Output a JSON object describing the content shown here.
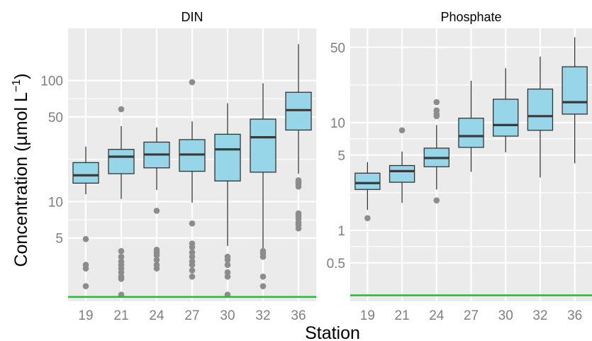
{
  "colors": {
    "panel_background": "#ebebeb",
    "grid": "#ffffff",
    "box_fill": "#97d6e8",
    "box_stroke": "#333333",
    "outlier": "#8c8c8c",
    "reference_line": "#22c42a",
    "tick_text": "#7f7f7f"
  },
  "labels": {
    "ylabel_main": "Concentration (",
    "ylabel_unit": "µmol L",
    "ylabel_exp": "−1",
    "ylabel_close": ")",
    "xlabel": "Station"
  },
  "chart_data": [
    {
      "type": "boxplot",
      "title": "DIN",
      "yscale": "log",
      "ylim": [
        1.5,
        270
      ],
      "yticks": [
        5,
        10,
        50,
        100
      ],
      "ytick_labels": [
        "5",
        "10",
        "50",
        "100"
      ],
      "reference_line": 1.63,
      "categories": [
        "19",
        "21",
        "24",
        "27",
        "30",
        "32",
        "36"
      ],
      "boxes": [
        {
          "station": "19",
          "whisker_low": 11.5,
          "q1": 14.2,
          "median": 16.5,
          "q3": 21.0,
          "whisker_high": 28.5,
          "outliers": [
            4.9,
            3.0,
            2.8,
            2.0
          ]
        },
        {
          "station": "21",
          "whisker_low": 10.5,
          "q1": 17.0,
          "median": 23.5,
          "q3": 27.0,
          "whisker_high": 42.0,
          "outliers": [
            58.0,
            3.9,
            3.5,
            3.2,
            3.0,
            2.8,
            2.6,
            2.4,
            2.3,
            1.7
          ]
        },
        {
          "station": "24",
          "whisker_low": 12.5,
          "q1": 19.0,
          "median": 24.5,
          "q3": 31.0,
          "whisker_high": 41.0,
          "outliers": [
            8.4,
            4.0,
            3.8,
            3.6,
            3.3,
            3.0,
            2.8
          ]
        },
        {
          "station": "27",
          "whisker_low": 9.8,
          "q1": 17.8,
          "median": 24.5,
          "q3": 32.5,
          "whisker_high": 46.0,
          "outliers": [
            97.0,
            6.6,
            4.5,
            4.2,
            3.8,
            3.5,
            3.2,
            3.0,
            2.7,
            2.4
          ]
        },
        {
          "station": "30",
          "whisker_low": 4.3,
          "q1": 14.8,
          "median": 27.0,
          "q3": 36.0,
          "whisker_high": 65.0,
          "outliers": [
            3.5,
            3.3,
            3.0,
            2.6,
            2.4,
            1.7
          ]
        },
        {
          "station": "32",
          "whisker_low": 4.0,
          "q1": 17.5,
          "median": 34.0,
          "q3": 48.0,
          "whisker_high": 95.0,
          "outliers": [
            3.9,
            3.7,
            3.5,
            2.4,
            2.0
          ]
        },
        {
          "station": "36",
          "whisker_low": 17.0,
          "q1": 39.0,
          "median": 57.0,
          "q3": 80.0,
          "whisker_high": 200.0,
          "outliers": [
            15.0,
            14.5,
            14.0,
            13.3,
            8.0,
            7.6,
            7.2,
            6.7,
            6.4,
            6.0
          ]
        }
      ]
    },
    {
      "type": "boxplot",
      "title": "Phosphate",
      "yscale": "log",
      "ylim": [
        0.22,
        75
      ],
      "yticks": [
        0.5,
        1,
        5,
        10,
        50
      ],
      "ytick_labels": [
        "0.5",
        "1",
        "5",
        "10",
        "50"
      ],
      "reference_line": 0.25,
      "categories": [
        "19",
        "21",
        "24",
        "27",
        "30",
        "32",
        "36"
      ],
      "boxes": [
        {
          "station": "19",
          "whisker_low": 1.55,
          "q1": 2.4,
          "median": 2.75,
          "q3": 3.4,
          "whisker_high": 4.3,
          "outliers": [
            1.3
          ]
        },
        {
          "station": "21",
          "whisker_low": 1.8,
          "q1": 2.8,
          "median": 3.55,
          "q3": 4.0,
          "whisker_high": 5.4,
          "outliers": [
            8.5
          ]
        },
        {
          "station": "24",
          "whisker_low": 2.4,
          "q1": 3.9,
          "median": 4.7,
          "q3": 5.8,
          "whisker_high": 9.5,
          "outliers": [
            15.5,
            13.0,
            12.0,
            11.5,
            1.9
          ]
        },
        {
          "station": "27",
          "whisker_low": 3.5,
          "q1": 5.9,
          "median": 7.5,
          "q3": 11.0,
          "whisker_high": 24.5,
          "outliers": []
        },
        {
          "station": "30",
          "whisker_low": 5.3,
          "q1": 7.5,
          "median": 9.5,
          "q3": 16.5,
          "whisker_high": 32.0,
          "outliers": []
        },
        {
          "station": "32",
          "whisker_low": 3.1,
          "q1": 8.5,
          "median": 11.5,
          "q3": 20.5,
          "whisker_high": 41.0,
          "outliers": []
        },
        {
          "station": "36",
          "whisker_low": 4.2,
          "q1": 12.0,
          "median": 15.5,
          "q3": 33.0,
          "whisker_high": 62.0,
          "outliers": []
        }
      ]
    }
  ]
}
